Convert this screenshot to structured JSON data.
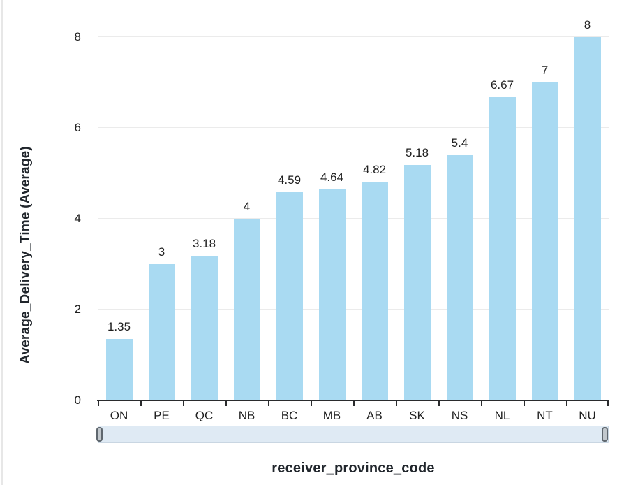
{
  "panel": {
    "background": "#ffffff",
    "left_border_color": "#e7e7e7"
  },
  "chart_data": {
    "type": "bar",
    "title": "",
    "xlabel": "receiver_province_code",
    "ylabel": "Average_Delivery_Time (Average)",
    "categories": [
      "ON",
      "PE",
      "QC",
      "NB",
      "BC",
      "MB",
      "AB",
      "SK",
      "NS",
      "NL",
      "NT",
      "NU"
    ],
    "values": [
      1.35,
      3,
      3.18,
      4,
      4.59,
      4.64,
      4.82,
      5.18,
      5.4,
      6.67,
      7,
      8
    ],
    "value_labels": [
      "1.35",
      "3",
      "3.18",
      "4",
      "4.59",
      "4.64",
      "4.82",
      "5.18",
      "5.4",
      "6.67",
      "7",
      "8"
    ],
    "yticks": [
      0,
      2,
      4,
      6,
      8
    ],
    "ytick_labels": [
      "0",
      "2",
      "4",
      "6",
      "8"
    ],
    "ylim": [
      0,
      8
    ],
    "grid": "horizontal-on",
    "legend": "none",
    "bar_color": "#a9daf2",
    "gridline_color": "#ebebeb",
    "axis_line_color": "#2a2b2d",
    "label_color": "#1f1f1f"
  },
  "scrollbar": {
    "type": "horizontal-range-slider",
    "track_color": "#dfeaf4",
    "track_border_color": "#c9d6e2",
    "handle_color": "#c2c8cd",
    "handle_border_color": "#5f676e",
    "left_handle_icon": "drag-handle-icon",
    "right_handle_icon": "drag-handle-icon"
  }
}
